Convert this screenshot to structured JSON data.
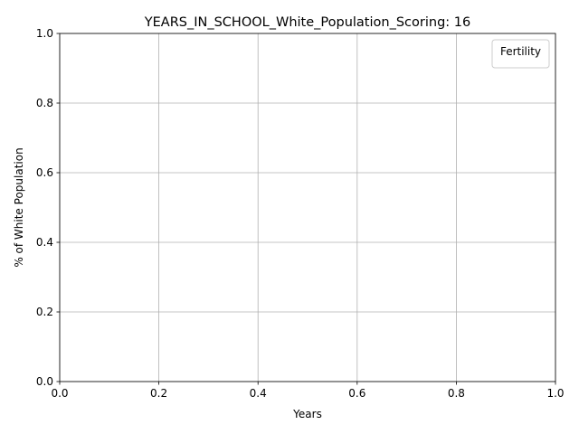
{
  "chart_data": {
    "type": "line",
    "title": "YEARS_IN_SCHOOL_White_Population_Scoring: 16",
    "xlabel": "Years",
    "ylabel": "% of White Population",
    "xlim": [
      0.0,
      1.0
    ],
    "ylim": [
      0.0,
      1.0
    ],
    "x_ticks": [
      "0.0",
      "0.2",
      "0.4",
      "0.6",
      "0.8",
      "1.0"
    ],
    "y_ticks": [
      "0.0",
      "0.2",
      "0.4",
      "0.6",
      "0.8",
      "1.0"
    ],
    "grid": true,
    "legend": {
      "title": "Fertility",
      "location": "top-right",
      "entries": []
    },
    "series": []
  }
}
